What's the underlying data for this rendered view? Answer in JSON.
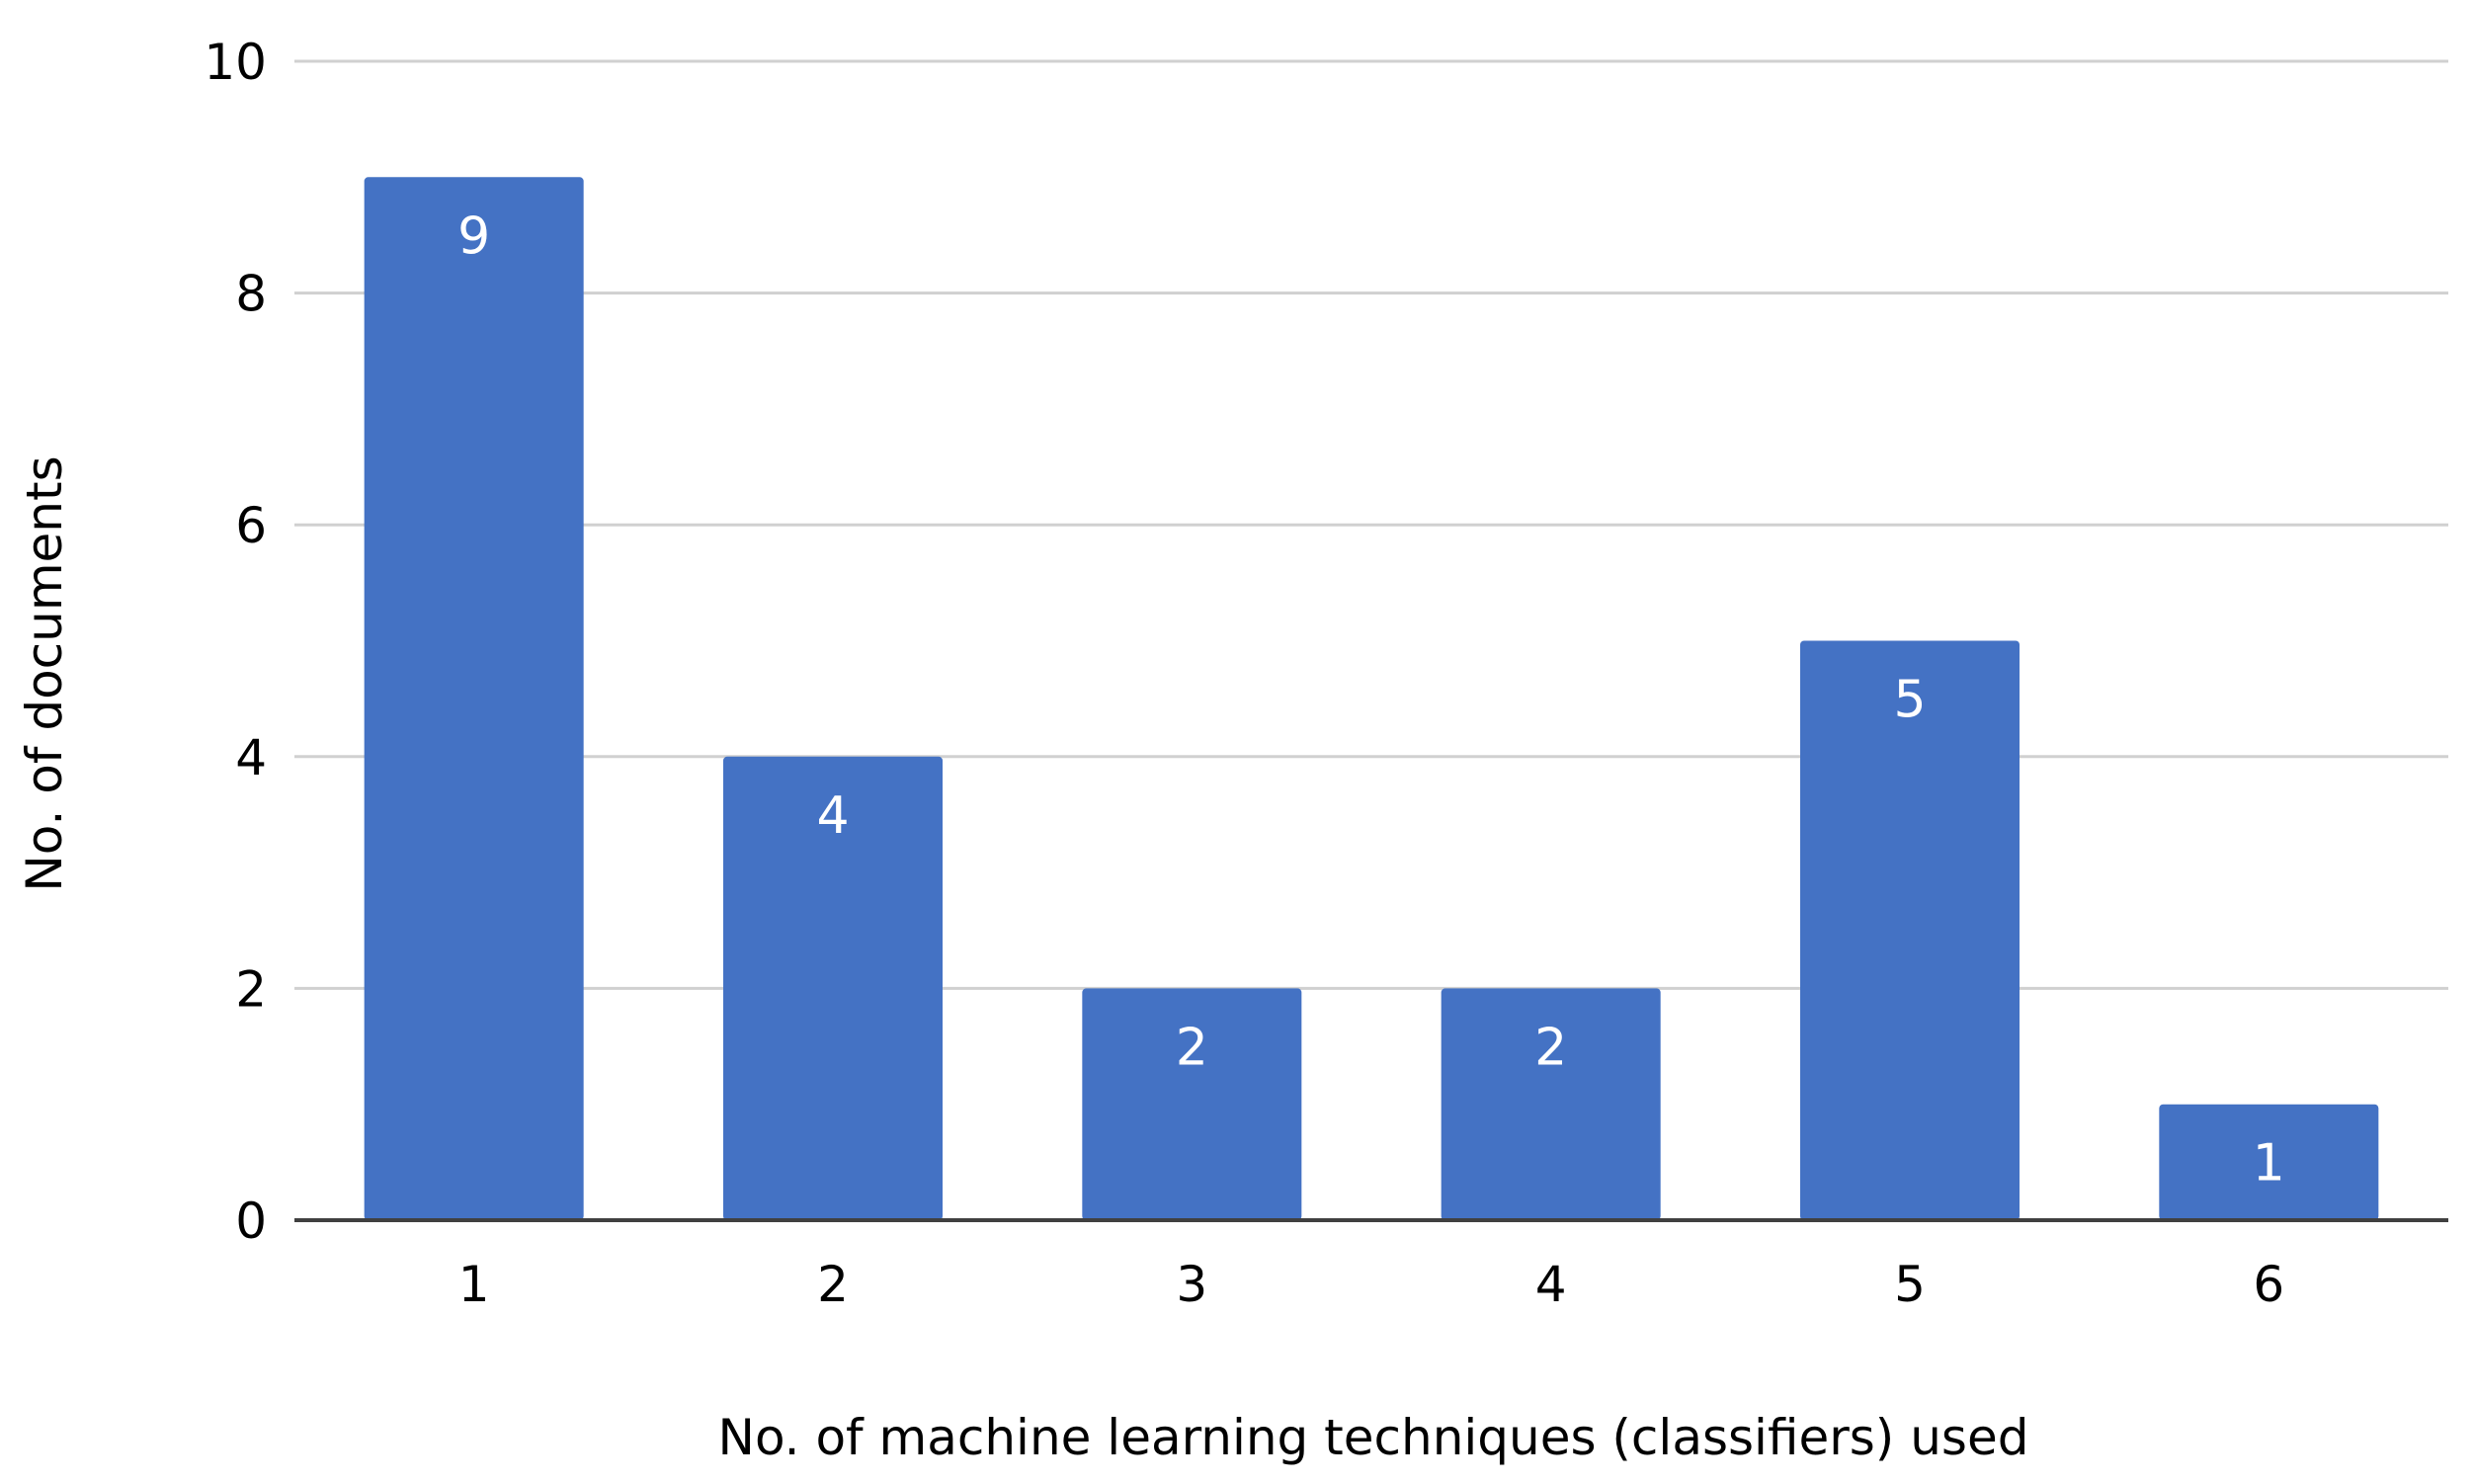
{
  "chart_data": {
    "type": "bar",
    "title": "",
    "xlabel": "No. of machine learning techniques (classifiers) used",
    "ylabel": "No. of documents",
    "categories": [
      "1",
      "2",
      "3",
      "4",
      "5",
      "6"
    ],
    "values": [
      9,
      4,
      2,
      2,
      5,
      1
    ],
    "data_labels": [
      "9",
      "4",
      "2",
      "2",
      "5",
      "1"
    ],
    "ylim": [
      0,
      10
    ],
    "yticks": [
      "0",
      "2",
      "4",
      "6",
      "8",
      "10"
    ],
    "grid": true,
    "legend": "none",
    "colors": {
      "bar": "#4472C4",
      "gridline": "#D0D0D0",
      "axis": "#404040",
      "data_label": "#FFFFFF",
      "text": "#000000"
    }
  }
}
